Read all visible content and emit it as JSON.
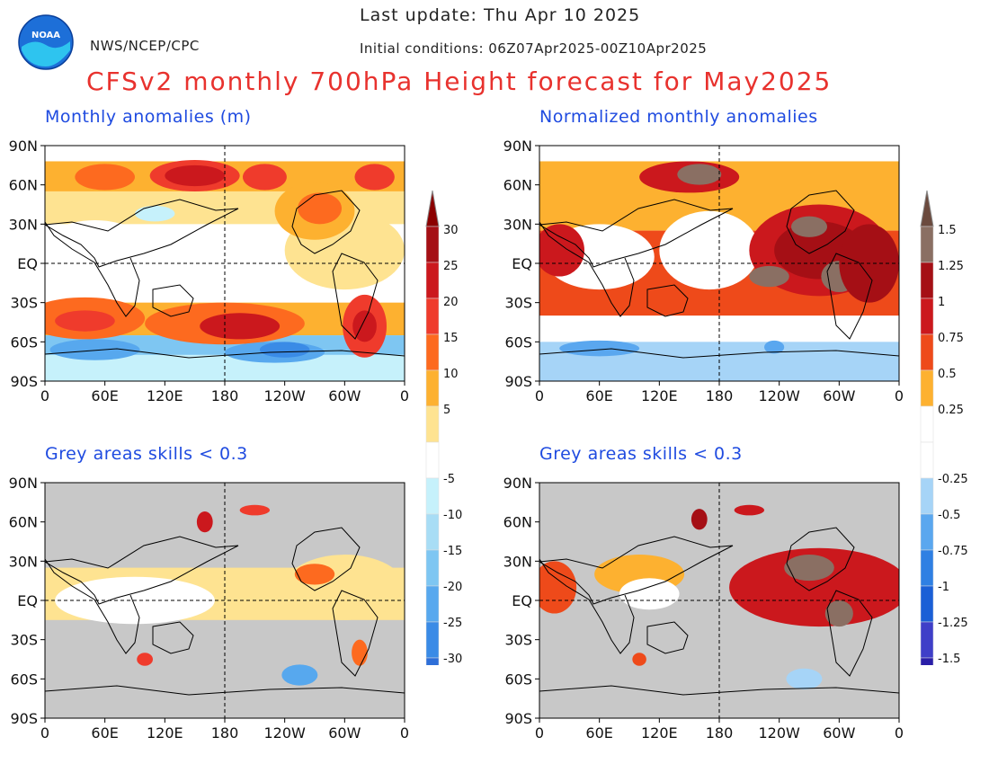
{
  "header": {
    "last_update": "Last update: Thu Apr 10 2025",
    "initial_conditions": "Initial conditions: 06Z07Apr2025-00Z10Apr2025",
    "agency": "NWS/NCEP/CPC",
    "title": "CFSv2 monthly 700hPa Height forecast for May2025",
    "logo_text": "NOAA"
  },
  "panels": [
    {
      "id": "tl",
      "title": "Monthly anomalies (m)",
      "masked": false,
      "scale": "abs"
    },
    {
      "id": "tr",
      "title": "Normalized monthly anomalies",
      "masked": false,
      "scale": "norm"
    },
    {
      "id": "bl",
      "title": "Grey areas skills < 0.3",
      "masked": true,
      "scale": "abs"
    },
    {
      "id": "br",
      "title": "Grey areas skills < 0.3",
      "masked": true,
      "scale": "norm"
    }
  ],
  "axes": {
    "lat_labels": [
      "90N",
      "60N",
      "30N",
      "EQ",
      "30S",
      "60S",
      "90S"
    ],
    "lon_labels": [
      "0",
      "60E",
      "120E",
      "180",
      "120W",
      "60W",
      "0"
    ]
  },
  "legend_abs": {
    "positive": [
      {
        "label": "30",
        "color": "#a50f15"
      },
      {
        "label": "25",
        "color": "#cb181d"
      },
      {
        "label": "20",
        "color": "#ef3b2c"
      },
      {
        "label": "15",
        "color": "#fd6a1f"
      },
      {
        "label": "10",
        "color": "#fdb130"
      },
      {
        "label": "5",
        "color": "#fee391"
      }
    ],
    "top_arrow_color": "#8b0000",
    "negative": [
      {
        "label": "-5",
        "color": "#c6f1fb"
      },
      {
        "label": "-10",
        "color": "#a8ddf5"
      },
      {
        "label": "-15",
        "color": "#7ec6f2"
      },
      {
        "label": "-20",
        "color": "#57a8ee"
      },
      {
        "label": "-25",
        "color": "#3a8be6"
      },
      {
        "label": "-30",
        "color": "#2e6fd8"
      }
    ],
    "bottom_arrow_color": "#2b6ed6"
  },
  "legend_norm": {
    "positive": [
      {
        "label": "1.5",
        "color": "#8a6f63"
      },
      {
        "label": "1.25",
        "color": "#a50f15"
      },
      {
        "label": "1",
        "color": "#cb181d"
      },
      {
        "label": "0.75",
        "color": "#ee4a1a"
      },
      {
        "label": "0.5",
        "color": "#fdb130"
      },
      {
        "label": "0.25",
        "color": "#ffffff"
      }
    ],
    "top_arrow_color": "#6b4a3e",
    "negative": [
      {
        "label": "-0.25",
        "color": "#a6d4f7"
      },
      {
        "label": "-0.5",
        "color": "#5aa7ef"
      },
      {
        "label": "-0.75",
        "color": "#2f80e3"
      },
      {
        "label": "-1",
        "color": "#1a5fd6"
      },
      {
        "label": "-1.25",
        "color": "#3f3fc8"
      },
      {
        "label": "-1.5",
        "color": "#2a1ea8"
      }
    ],
    "bottom_arrow_color": "#1e0f96"
  },
  "colors": {
    "title_red": "#e8322e",
    "panel_title_blue": "#1f4be0",
    "mask_grey": "#c8c8c8"
  }
}
